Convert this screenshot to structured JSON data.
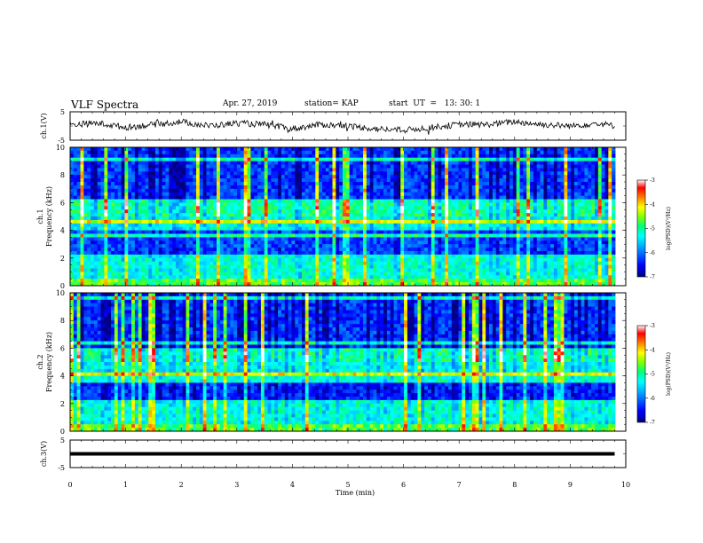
{
  "header": {
    "title": "VLF Spectra",
    "date": "Apr. 27, 2019",
    "station": "station= KAP",
    "start": "start  UT  =   13: 30: 1"
  },
  "chart_data": [
    {
      "type": "line",
      "panel": "ch1-waveform",
      "ylabel": "ch.1(V)",
      "ylim": [
        -5,
        5
      ],
      "xlim": [
        0,
        10
      ],
      "yticks": [
        "5",
        "-5"
      ],
      "note": "noisy waveform, mean about 0 V",
      "series": [
        {
          "x": [
            0,
            0.5,
            1,
            1.5,
            2,
            2.5,
            3,
            3.5,
            4,
            4.5,
            5,
            5.5,
            6,
            6.5,
            7,
            7.5,
            8,
            8.5,
            9,
            9.5,
            9.8
          ],
          "values": [
            0.5,
            1,
            -0.5,
            0.5,
            1.5,
            0,
            1,
            0.5,
            -1,
            0.5,
            0,
            -1,
            -1.5,
            -0.5,
            0.5,
            0.5,
            1.5,
            0.5,
            0,
            1,
            0
          ]
        }
      ]
    },
    {
      "type": "heatmap",
      "panel": "ch1-spectrogram",
      "ylabel": "ch.1\nFrequency (kHz)",
      "ylim": [
        0,
        10
      ],
      "xlim": [
        0,
        10
      ],
      "yticks": [
        "0",
        "2",
        "4",
        "6",
        "8",
        "10"
      ],
      "colorbar": {
        "label": "log(PSD)(V²/Hz)",
        "range": [
          -7,
          -3
        ],
        "ticks": [
          "-3",
          "-4",
          "-5",
          "-6",
          "-7"
        ]
      }
    },
    {
      "type": "heatmap",
      "panel": "ch2-spectrogram",
      "ylabel": "ch.2\nFrequency (kHz)",
      "ylim": [
        0,
        10
      ],
      "xlim": [
        0,
        10
      ],
      "yticks": [
        "0",
        "2",
        "4",
        "6",
        "8",
        "10"
      ],
      "colorbar": {
        "label": "log(PSD)(V²/Hz)",
        "range": [
          -7,
          -3
        ],
        "ticks": [
          "-3",
          "-4",
          "-5",
          "-6",
          "-7"
        ]
      }
    },
    {
      "type": "line",
      "panel": "ch3-waveform",
      "ylabel": "ch.3(V)",
      "ylim": [
        -5,
        5
      ],
      "xlim": [
        0,
        10
      ],
      "yticks": [
        "5",
        "-5"
      ],
      "series": [
        {
          "x": [
            0,
            9.8
          ],
          "values": [
            0,
            0
          ]
        }
      ]
    }
  ],
  "x_axis": {
    "label": "Time  (min)",
    "ticks": [
      "0",
      "1",
      "2",
      "3",
      "4",
      "5",
      "6",
      "7",
      "8",
      "9",
      "10"
    ]
  },
  "colors": {
    "axis": "#000000",
    "colormap": [
      "#000080",
      "#0000ff",
      "#00a0ff",
      "#00ffff",
      "#00ff80",
      "#80ff00",
      "#ffff00",
      "#ff8000",
      "#ff0000",
      "#ffffff"
    ]
  }
}
